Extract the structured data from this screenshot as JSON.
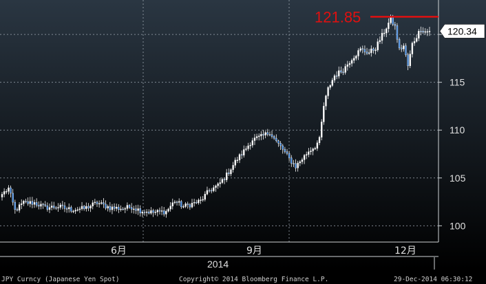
{
  "chart_data": {
    "type": "candlestick",
    "title": "",
    "ylabel": "",
    "ylim": [
      98.3,
      123.6
    ],
    "yticks": [
      100,
      105,
      110,
      115,
      120
    ],
    "ytick_labels": [
      "100",
      "105",
      "110",
      "115",
      "120"
    ],
    "x_tick_labels": [
      "6月",
      "9月",
      "12月"
    ],
    "x_year_label": "2014",
    "last_value_label": "120.34",
    "last_value": 120.34,
    "peak_label": "121.85",
    "peak_value": 121.85,
    "grid": true,
    "colors": {
      "background_top": "#2a3642",
      "background_bottom": "#000000",
      "candle_up": "#ffffff",
      "candle_down": "#2f7fe0",
      "peak_line": "#e01010",
      "grid": "#9aa4ae"
    },
    "anchors": [
      {
        "i": 0,
        "c": 103.3
      },
      {
        "i": 3,
        "c": 103.9
      },
      {
        "i": 6,
        "c": 101.6
      },
      {
        "i": 10,
        "c": 102.4
      },
      {
        "i": 15,
        "c": 102.4
      },
      {
        "i": 20,
        "c": 101.9
      },
      {
        "i": 26,
        "c": 102.0
      },
      {
        "i": 32,
        "c": 101.7
      },
      {
        "i": 38,
        "c": 101.8
      },
      {
        "i": 44,
        "c": 102.4
      },
      {
        "i": 50,
        "c": 101.9
      },
      {
        "i": 56,
        "c": 101.8
      },
      {
        "i": 60,
        "c": 102.0
      },
      {
        "i": 64,
        "c": 101.6
      },
      {
        "i": 70,
        "c": 101.4
      },
      {
        "i": 76,
        "c": 101.5
      },
      {
        "i": 80,
        "c": 102.6
      },
      {
        "i": 84,
        "c": 102.0
      },
      {
        "i": 88,
        "c": 102.3
      },
      {
        "i": 92,
        "c": 102.6
      },
      {
        "i": 96,
        "c": 103.7
      },
      {
        "i": 100,
        "c": 104.2
      },
      {
        "i": 104,
        "c": 105.3
      },
      {
        "i": 108,
        "c": 106.7
      },
      {
        "i": 112,
        "c": 107.8
      },
      {
        "i": 116,
        "c": 109.0
      },
      {
        "i": 120,
        "c": 109.3
      },
      {
        "i": 124,
        "c": 109.8
      },
      {
        "i": 127,
        "c": 108.8
      },
      {
        "i": 130,
        "c": 108.0
      },
      {
        "i": 133,
        "c": 107.0
      },
      {
        "i": 136,
        "c": 106.2
      },
      {
        "i": 139,
        "c": 107.0
      },
      {
        "i": 142,
        "c": 107.8
      },
      {
        "i": 145,
        "c": 108.3
      },
      {
        "i": 147,
        "c": 109.0
      },
      {
        "i": 149,
        "c": 112.5
      },
      {
        "i": 151,
        "c": 114.3
      },
      {
        "i": 154,
        "c": 115.7
      },
      {
        "i": 158,
        "c": 116.3
      },
      {
        "i": 162,
        "c": 117.5
      },
      {
        "i": 166,
        "c": 118.4
      },
      {
        "i": 170,
        "c": 118.1
      },
      {
        "i": 173,
        "c": 118.6
      },
      {
        "i": 177,
        "c": 120.3
      },
      {
        "i": 180,
        "c": 121.6
      },
      {
        "i": 182,
        "c": 120.8
      },
      {
        "i": 184,
        "c": 118.4
      },
      {
        "i": 186,
        "c": 118.8
      },
      {
        "i": 188,
        "c": 116.7
      },
      {
        "i": 190,
        "c": 119.0
      },
      {
        "i": 192,
        "c": 119.8
      },
      {
        "i": 194,
        "c": 120.6
      },
      {
        "i": 196,
        "c": 120.3
      },
      {
        "i": 198,
        "c": 120.34
      }
    ]
  },
  "footer": {
    "left": "JPY Curncy (Japanese Yen Spot)",
    "center": "Copyright© 2014 Bloomberg Finance L.P.",
    "right": "29-Dec-2014 06:30:12"
  }
}
